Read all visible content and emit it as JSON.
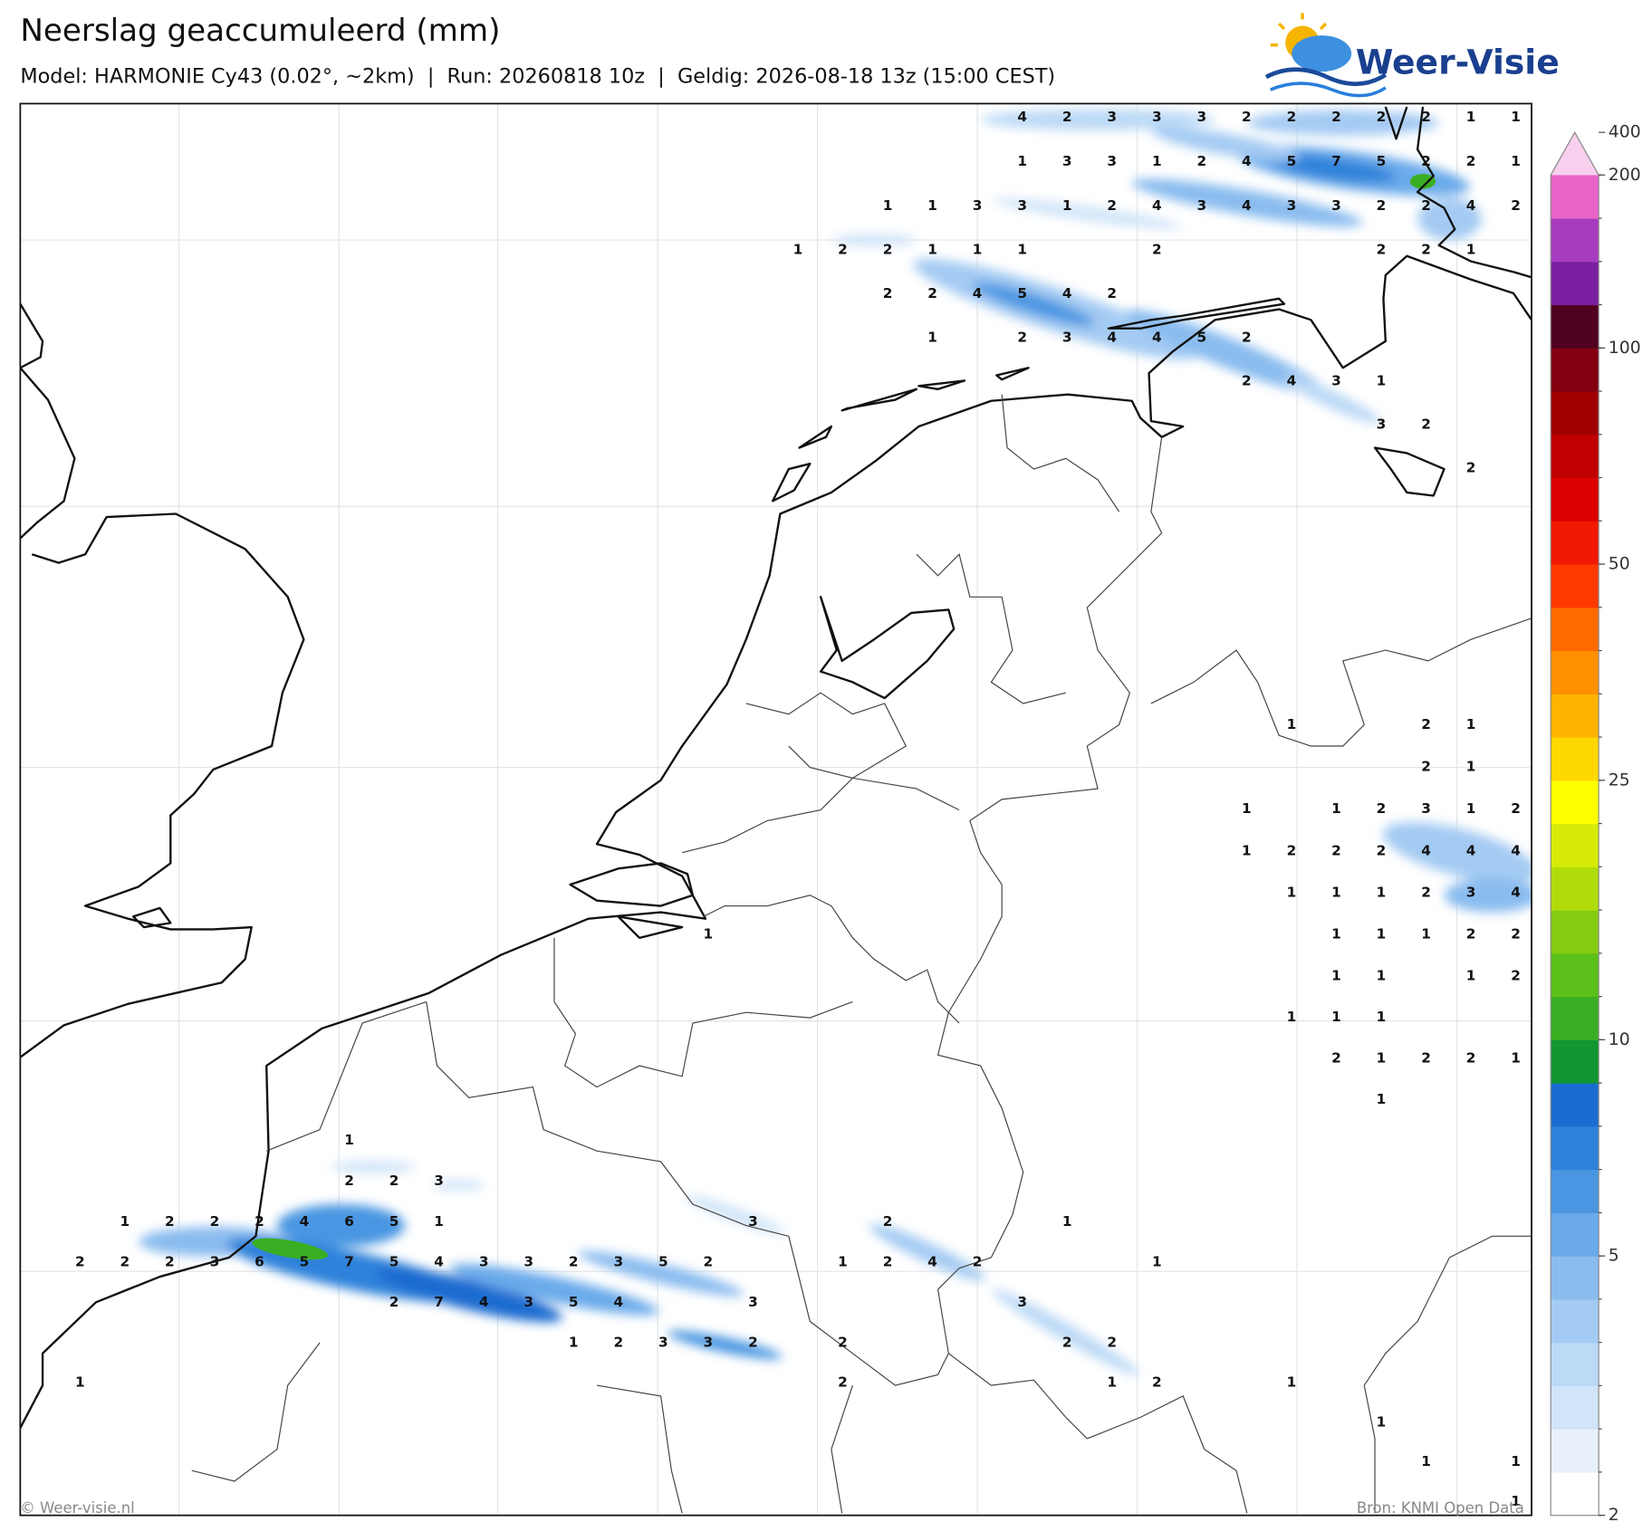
{
  "header": {
    "title": "Neerslag geaccumuleerd (mm)",
    "subtitle": "Model: HARMONIE Cy43 (0.02°, ~2km)  |  Run: 20260818 10z  |  Geldig: 2026-08-18 13z (15:00 CEST)",
    "logo": "Weer-Visie"
  },
  "map": {
    "labels": [
      [
        null,
        null,
        null,
        null,
        null,
        null,
        null,
        null,
        null,
        null,
        null,
        null,
        null,
        null,
        null,
        null,
        null,
        null,
        null,
        null,
        null,
        4,
        2,
        3,
        3,
        3,
        2,
        2,
        2,
        2,
        2,
        1,
        1
      ],
      [
        null,
        null,
        null,
        null,
        null,
        null,
        null,
        null,
        null,
        null,
        null,
        null,
        null,
        null,
        null,
        null,
        null,
        null,
        null,
        null,
        null,
        1,
        3,
        3,
        1,
        2,
        4,
        5,
        7,
        5,
        2,
        2,
        1
      ],
      [
        null,
        null,
        null,
        null,
        null,
        null,
        null,
        null,
        null,
        null,
        null,
        null,
        null,
        null,
        null,
        null,
        null,
        null,
        1,
        1,
        3,
        3,
        1,
        2,
        4,
        3,
        4,
        3,
        3,
        2,
        2,
        4,
        2
      ],
      [
        null,
        null,
        null,
        null,
        null,
        null,
        null,
        null,
        null,
        null,
        null,
        null,
        null,
        null,
        null,
        null,
        1,
        2,
        2,
        1,
        1,
        1,
        null,
        null,
        2,
        null,
        null,
        null,
        null,
        2,
        2,
        1,
        null
      ],
      [
        null,
        null,
        null,
        null,
        null,
        null,
        null,
        null,
        null,
        null,
        null,
        null,
        null,
        null,
        null,
        null,
        null,
        null,
        2,
        2,
        4,
        5,
        4,
        2,
        null,
        null,
        null,
        null,
        null,
        null,
        null,
        null,
        null
      ],
      [
        null,
        null,
        null,
        null,
        null,
        null,
        null,
        null,
        null,
        null,
        null,
        null,
        null,
        null,
        null,
        null,
        null,
        null,
        null,
        1,
        null,
        2,
        3,
        4,
        4,
        5,
        2,
        null,
        null,
        null,
        null,
        null,
        null
      ],
      [
        null,
        null,
        null,
        null,
        null,
        null,
        null,
        null,
        null,
        null,
        null,
        null,
        null,
        null,
        null,
        null,
        null,
        null,
        null,
        null,
        null,
        null,
        null,
        null,
        null,
        null,
        2,
        4,
        3,
        1,
        null,
        null,
        null
      ],
      [
        null,
        null,
        null,
        null,
        null,
        null,
        null,
        null,
        null,
        null,
        null,
        null,
        null,
        null,
        null,
        null,
        null,
        null,
        null,
        null,
        null,
        null,
        null,
        null,
        null,
        null,
        null,
        null,
        null,
        3,
        2,
        null,
        null
      ],
      [
        null,
        null,
        null,
        null,
        null,
        null,
        null,
        null,
        null,
        null,
        null,
        null,
        null,
        null,
        null,
        null,
        null,
        null,
        null,
        null,
        null,
        null,
        null,
        null,
        null,
        null,
        null,
        null,
        null,
        null,
        null,
        2,
        null
      ],
      [
        null,
        null,
        null,
        null,
        null,
        null,
        null,
        null,
        null,
        null,
        null,
        null,
        null,
        null,
        null,
        null,
        null,
        null,
        null,
        null,
        null,
        null,
        null,
        null,
        null,
        null,
        null,
        null,
        null,
        null,
        null,
        null,
        null
      ],
      [
        null,
        null,
        null,
        null,
        null,
        null,
        null,
        null,
        null,
        null,
        null,
        null,
        null,
        null,
        null,
        null,
        null,
        null,
        null,
        null,
        null,
        null,
        null,
        null,
        null,
        null,
        null,
        null,
        null,
        null,
        null,
        null,
        null
      ],
      [
        null,
        null,
        null,
        null,
        null,
        null,
        null,
        null,
        null,
        null,
        null,
        null,
        null,
        null,
        null,
        null,
        null,
        null,
        null,
        null,
        null,
        null,
        null,
        null,
        null,
        null,
        null,
        null,
        null,
        null,
        null,
        null,
        null
      ],
      [
        null,
        null,
        null,
        null,
        null,
        null,
        null,
        null,
        null,
        null,
        null,
        null,
        null,
        null,
        null,
        null,
        null,
        null,
        null,
        null,
        null,
        null,
        null,
        null,
        null,
        null,
        null,
        null,
        null,
        null,
        null,
        null,
        null
      ],
      [
        null,
        null,
        null,
        null,
        null,
        null,
        null,
        null,
        null,
        null,
        null,
        null,
        null,
        null,
        null,
        null,
        null,
        null,
        null,
        null,
        null,
        null,
        null,
        null,
        null,
        null,
        null,
        null,
        null,
        null,
        null,
        null,
        null
      ],
      [
        null,
        null,
        null,
        null,
        null,
        null,
        null,
        null,
        null,
        null,
        null,
        null,
        null,
        null,
        null,
        null,
        null,
        null,
        null,
        null,
        null,
        null,
        null,
        null,
        null,
        null,
        null,
        1,
        null,
        null,
        2,
        1,
        null
      ],
      [
        null,
        null,
        null,
        null,
        null,
        null,
        null,
        null,
        null,
        null,
        null,
        null,
        null,
        null,
        null,
        null,
        null,
        null,
        null,
        null,
        null,
        null,
        null,
        null,
        null,
        null,
        null,
        null,
        null,
        null,
        2,
        1,
        null
      ],
      [
        null,
        null,
        null,
        null,
        null,
        null,
        null,
        null,
        null,
        null,
        null,
        null,
        null,
        null,
        null,
        null,
        null,
        null,
        null,
        null,
        null,
        null,
        null,
        null,
        null,
        null,
        1,
        null,
        1,
        2,
        3,
        1,
        2
      ],
      [
        null,
        null,
        null,
        null,
        null,
        null,
        null,
        null,
        null,
        null,
        null,
        null,
        null,
        null,
        null,
        null,
        null,
        null,
        null,
        null,
        null,
        null,
        null,
        null,
        null,
        null,
        1,
        2,
        2,
        2,
        4,
        4,
        4
      ],
      [
        null,
        null,
        null,
        null,
        null,
        null,
        null,
        null,
        null,
        null,
        null,
        null,
        null,
        null,
        null,
        null,
        null,
        null,
        null,
        null,
        null,
        null,
        null,
        null,
        null,
        null,
        null,
        1,
        1,
        1,
        2,
        3,
        4
      ],
      [
        null,
        null,
        null,
        null,
        null,
        null,
        null,
        null,
        null,
        null,
        null,
        null,
        null,
        null,
        1,
        null,
        null,
        null,
        null,
        null,
        null,
        null,
        null,
        null,
        null,
        null,
        null,
        null,
        1,
        1,
        1,
        2,
        2
      ],
      [
        null,
        null,
        null,
        null,
        null,
        null,
        null,
        null,
        null,
        null,
        null,
        null,
        null,
        null,
        null,
        null,
        null,
        null,
        null,
        null,
        null,
        null,
        null,
        null,
        null,
        null,
        null,
        null,
        1,
        1,
        null,
        1,
        2
      ],
      [
        null,
        null,
        null,
        null,
        null,
        null,
        null,
        null,
        null,
        null,
        null,
        null,
        null,
        null,
        null,
        null,
        null,
        null,
        null,
        null,
        null,
        null,
        null,
        null,
        null,
        null,
        null,
        1,
        1,
        1,
        null,
        null,
        null
      ],
      [
        null,
        null,
        null,
        null,
        null,
        null,
        null,
        null,
        null,
        null,
        null,
        null,
        null,
        null,
        null,
        null,
        null,
        null,
        null,
        null,
        null,
        null,
        null,
        null,
        null,
        null,
        null,
        null,
        2,
        1,
        2,
        2,
        1
      ],
      [
        null,
        null,
        null,
        null,
        null,
        null,
        null,
        null,
        null,
        null,
        null,
        null,
        null,
        null,
        null,
        null,
        null,
        null,
        null,
        null,
        null,
        null,
        null,
        null,
        null,
        null,
        null,
        null,
        null,
        1,
        null,
        null,
        null
      ],
      [
        null,
        null,
        null,
        null,
        null,
        null,
        1,
        null,
        null,
        null,
        null,
        null,
        null,
        null,
        null,
        null,
        null,
        null,
        null,
        null,
        null,
        null,
        null,
        null,
        null,
        null,
        null,
        null,
        null,
        null,
        null,
        null,
        null
      ],
      [
        null,
        null,
        null,
        null,
        null,
        null,
        2,
        2,
        3,
        null,
        null,
        null,
        null,
        null,
        null,
        null,
        null,
        null,
        null,
        null,
        null,
        null,
        null,
        null,
        null,
        null,
        null,
        null,
        null,
        null,
        null,
        null,
        null
      ],
      [
        null,
        1,
        2,
        2,
        2,
        4,
        6,
        5,
        1,
        null,
        null,
        null,
        null,
        null,
        null,
        3,
        null,
        null,
        2,
        null,
        null,
        null,
        1,
        null,
        null,
        null,
        null,
        null,
        null,
        null,
        null,
        null,
        null
      ],
      [
        2,
        2,
        2,
        3,
        6,
        5,
        7,
        5,
        4,
        3,
        3,
        2,
        3,
        5,
        2,
        null,
        null,
        1,
        2,
        4,
        2,
        null,
        null,
        null,
        1,
        null,
        null,
        null,
        null,
        null,
        null,
        null,
        null
      ],
      [
        null,
        null,
        null,
        null,
        null,
        null,
        null,
        2,
        7,
        4,
        3,
        5,
        4,
        null,
        null,
        3,
        null,
        null,
        null,
        null,
        null,
        3,
        null,
        null,
        null,
        null,
        null,
        null,
        null,
        null,
        null,
        null,
        null
      ],
      [
        null,
        null,
        null,
        null,
        null,
        null,
        null,
        null,
        null,
        null,
        null,
        1,
        2,
        3,
        3,
        2,
        null,
        2,
        null,
        null,
        null,
        null,
        2,
        2,
        null,
        null,
        null,
        null,
        null,
        null,
        null,
        null,
        null
      ],
      [
        1,
        null,
        null,
        null,
        null,
        null,
        null,
        null,
        null,
        null,
        null,
        null,
        null,
        null,
        null,
        null,
        null,
        2,
        null,
        null,
        null,
        null,
        null,
        1,
        2,
        null,
        null,
        1,
        null,
        null,
        null,
        null,
        null
      ],
      [
        null,
        null,
        null,
        null,
        null,
        null,
        null,
        null,
        null,
        null,
        null,
        null,
        null,
        null,
        null,
        null,
        null,
        null,
        null,
        null,
        null,
        null,
        null,
        null,
        null,
        null,
        null,
        null,
        null,
        1,
        null,
        null,
        null
      ],
      [
        null,
        null,
        null,
        null,
        null,
        null,
        null,
        null,
        null,
        null,
        null,
        null,
        null,
        null,
        null,
        null,
        null,
        null,
        null,
        null,
        null,
        null,
        null,
        null,
        null,
        null,
        null,
        null,
        null,
        null,
        1,
        null,
        1
      ],
      [
        null,
        null,
        null,
        null,
        null,
        null,
        null,
        null,
        null,
        null,
        null,
        null,
        null,
        null,
        null,
        null,
        null,
        null,
        null,
        null,
        null,
        null,
        null,
        null,
        null,
        null,
        null,
        null,
        null,
        null,
        null,
        null,
        1
      ]
    ]
  },
  "colorbar": {
    "colors": [
      "#ffffff",
      "#e8f1fb",
      "#d2e5f8",
      "#bcd9f6",
      "#a4cbf3",
      "#8abcef",
      "#6aaaea",
      "#4a96e2",
      "#2f82da",
      "#1a6cd0",
      "#129632",
      "#3aae22",
      "#5cc01a",
      "#84cc12",
      "#b0dc0c",
      "#d6ec08",
      "#ffff00",
      "#ffd800",
      "#ffb400",
      "#ff9000",
      "#ff6a00",
      "#ff3a00",
      "#f01800",
      "#dc0000",
      "#c00000",
      "#a00000",
      "#820010",
      "#500020",
      "#7a1fa0",
      "#a83cc0",
      "#e864c8"
    ],
    "extend_color": "#f8d0ee",
    "levels": [
      2,
      2.5,
      3,
      3.5,
      4,
      4.5,
      5,
      6,
      7,
      8,
      9,
      10,
      12.5,
      15,
      17.5,
      20,
      22.5,
      25,
      30,
      35,
      40,
      45,
      50,
      60,
      70,
      80,
      90,
      100,
      125,
      150,
      175,
      200
    ],
    "ticks": [
      2,
      5,
      10,
      25,
      50,
      100,
      200,
      400
    ]
  },
  "footer": {
    "copyright": "© Weer-visie.nl",
    "source": "Bron: KNMI Open Data"
  }
}
